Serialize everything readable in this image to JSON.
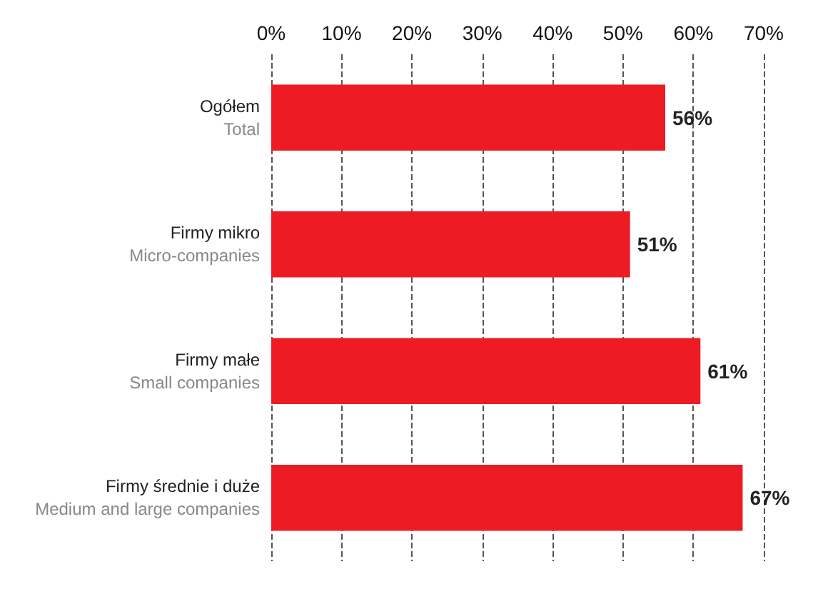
{
  "chart_data": {
    "type": "bar",
    "orientation": "horizontal",
    "categories": [
      "Ogółem\nTotal",
      "Firmy mikro\nMicro-companies",
      "Firmy małe\nSmall companies",
      "Firmy średnie i duże\nMedium and large companies"
    ],
    "values": [
      56,
      51,
      61,
      67
    ],
    "color": "#ed1c24",
    "value_labels": [
      "56%",
      "51%",
      "61%",
      "67%"
    ],
    "xlim": [
      0,
      70
    ],
    "xticks": [
      {
        "value": 0,
        "label": "0%"
      },
      {
        "value": 10,
        "label": "10%"
      },
      {
        "value": 20,
        "label": "20%"
      },
      {
        "value": 30,
        "label": "30%"
      },
      {
        "value": 40,
        "label": "40%"
      },
      {
        "value": 50,
        "label": "50%"
      },
      {
        "value": 60,
        "label": "60%"
      },
      {
        "value": 70,
        "label": "70%"
      }
    ],
    "grid": "x"
  }
}
